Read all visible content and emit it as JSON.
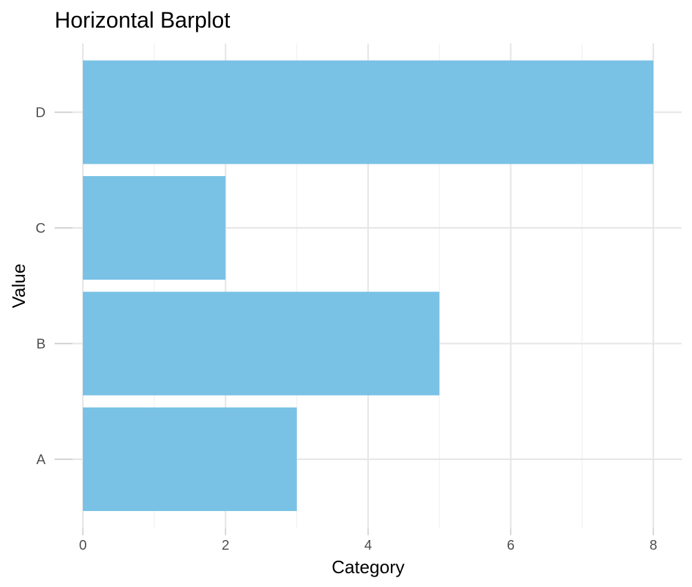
{
  "chart_data": {
    "type": "bar",
    "orientation": "horizontal",
    "title": "Horizontal Barplot",
    "xlabel": "Category",
    "ylabel": "Value",
    "categories": [
      "A",
      "B",
      "C",
      "D"
    ],
    "values": [
      3,
      5,
      2,
      8
    ],
    "xlim": [
      0,
      8
    ],
    "x_ticks": [
      0,
      2,
      4,
      6,
      8
    ],
    "grid": true,
    "legend": "none",
    "bar_color": "#79C2E5",
    "background": "#ffffff"
  }
}
